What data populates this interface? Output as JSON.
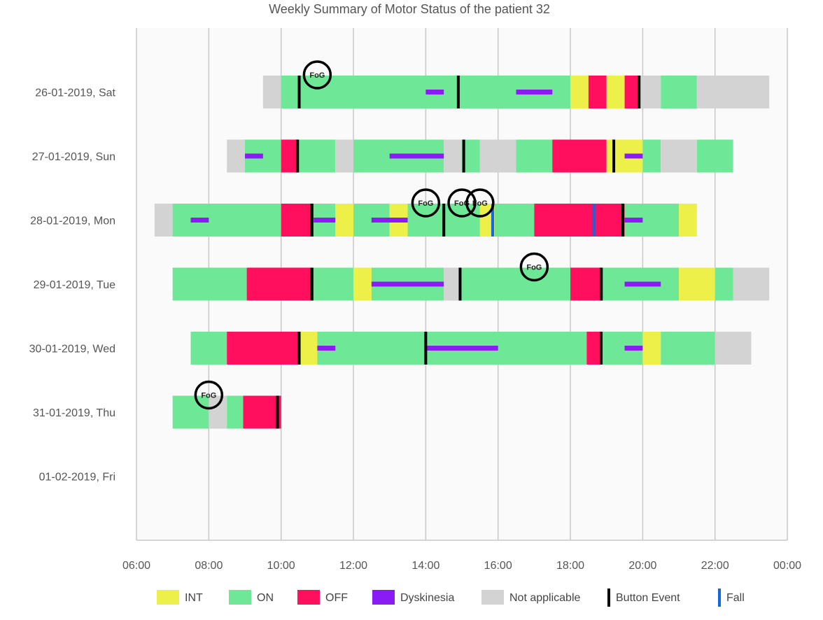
{
  "chart_data": {
    "type": "timeline",
    "title": "Weekly Summary of Motor Status of the patient 32",
    "x_axis": {
      "ticks": [
        "06:00",
        "08:00",
        "10:00",
        "12:00",
        "14:00",
        "16:00",
        "18:00",
        "20:00",
        "22:00",
        "00:00"
      ],
      "range_hours": [
        6,
        24
      ]
    },
    "legend": [
      {
        "key": "INT",
        "label": "INT",
        "color": "#eef04a"
      },
      {
        "key": "ON",
        "label": "ON",
        "color": "#6ee896"
      },
      {
        "key": "OFF",
        "label": "OFF",
        "color": "#ff0f5e"
      },
      {
        "key": "DYS",
        "label": "Dyskinesia",
        "color": "#8a1bf5"
      },
      {
        "key": "NA",
        "label": "Not applicable",
        "color": "#d3d3d3"
      },
      {
        "key": "BTN",
        "label": "Button Event",
        "color": "#000000"
      },
      {
        "key": "FALL",
        "label": "Fall",
        "color": "#1566e0"
      }
    ],
    "fog_label": "FoG",
    "days": [
      {
        "label": "26-01-2019, Sat",
        "segments": [
          [
            "NA",
            9.5,
            10.0
          ],
          [
            "ON",
            10.0,
            18.0
          ],
          [
            "INT",
            18.0,
            18.5
          ],
          [
            "OFF",
            18.5,
            19.0
          ],
          [
            "INT",
            19.0,
            19.5
          ],
          [
            "OFF",
            19.5,
            19.9
          ],
          [
            "NA",
            19.9,
            20.5
          ],
          [
            "ON",
            20.5,
            21.5
          ],
          [
            "NA",
            21.5,
            23.5
          ]
        ],
        "dyskinesia": [
          [
            14.0,
            14.5
          ],
          [
            16.5,
            17.5
          ]
        ],
        "buttons": [
          10.5,
          14.9,
          19.9
        ],
        "falls": [],
        "fog": [
          11.0
        ]
      },
      {
        "label": "27-01-2019, Sun",
        "segments": [
          [
            "NA",
            8.5,
            9.0
          ],
          [
            "ON",
            9.0,
            10.0
          ],
          [
            "OFF",
            10.0,
            10.5
          ],
          [
            "ON",
            10.5,
            11.5
          ],
          [
            "NA",
            11.5,
            12.0
          ],
          [
            "ON",
            12.0,
            14.5
          ],
          [
            "NA",
            14.5,
            15.0
          ],
          [
            "ON",
            15.0,
            15.5
          ],
          [
            "NA",
            15.5,
            16.5
          ],
          [
            "ON",
            16.5,
            17.5
          ],
          [
            "OFF",
            17.5,
            19.0
          ],
          [
            "INT",
            19.0,
            20.0
          ],
          [
            "ON",
            20.0,
            20.5
          ],
          [
            "NA",
            20.5,
            21.5
          ],
          [
            "ON",
            21.5,
            22.5
          ]
        ],
        "dyskinesia": [
          [
            9.0,
            9.5
          ],
          [
            13.0,
            14.5
          ],
          [
            19.5,
            20.0
          ]
        ],
        "buttons": [
          10.45,
          15.05,
          19.2
        ],
        "falls": [],
        "fog": []
      },
      {
        "label": "28-01-2019, Mon",
        "segments": [
          [
            "NA",
            6.5,
            7.0
          ],
          [
            "ON",
            7.0,
            10.0
          ],
          [
            "OFF",
            10.0,
            10.9
          ],
          [
            "ON",
            10.9,
            11.5
          ],
          [
            "INT",
            11.5,
            12.0
          ],
          [
            "ON",
            12.0,
            13.0
          ],
          [
            "INT",
            13.0,
            13.5
          ],
          [
            "ON",
            13.5,
            15.5
          ],
          [
            "INT",
            15.5,
            15.9
          ],
          [
            "ON",
            15.9,
            17.0
          ],
          [
            "OFF",
            17.0,
            19.5
          ],
          [
            "ON",
            19.5,
            21.0
          ],
          [
            "INT",
            21.0,
            21.5
          ]
        ],
        "dyskinesia": [
          [
            7.5,
            8.0
          ],
          [
            10.9,
            11.5
          ],
          [
            12.5,
            13.5
          ],
          [
            19.5,
            20.0
          ]
        ],
        "buttons": [
          10.85,
          14.5,
          19.45
        ],
        "falls": [
          15.85,
          18.65
        ],
        "fog": [
          14.0,
          15.0,
          15.5
        ]
      },
      {
        "label": "29-01-2019, Tue",
        "segments": [
          [
            "ON",
            7.0,
            9.05
          ],
          [
            "OFF",
            9.05,
            10.9
          ],
          [
            "ON",
            10.9,
            12.0
          ],
          [
            "INT",
            12.0,
            12.5
          ],
          [
            "ON",
            12.5,
            14.5
          ],
          [
            "NA",
            14.5,
            14.95
          ],
          [
            "ON",
            14.95,
            18.0
          ],
          [
            "OFF",
            18.0,
            18.9
          ],
          [
            "ON",
            18.9,
            21.0
          ],
          [
            "INT",
            21.0,
            22.0
          ],
          [
            "ON",
            22.0,
            22.5
          ],
          [
            "NA",
            22.5,
            23.5
          ]
        ],
        "dyskinesia": [
          [
            12.5,
            14.5
          ],
          [
            19.5,
            20.5
          ]
        ],
        "buttons": [
          10.85,
          14.95,
          18.85
        ],
        "falls": [],
        "fog": [
          17.0
        ]
      },
      {
        "label": "30-01-2019, Wed",
        "segments": [
          [
            "ON",
            7.5,
            8.5
          ],
          [
            "OFF",
            8.5,
            10.5
          ],
          [
            "INT",
            10.5,
            11.0
          ],
          [
            "ON",
            11.0,
            18.45
          ],
          [
            "OFF",
            18.45,
            18.85
          ],
          [
            "ON",
            18.85,
            20.0
          ],
          [
            "INT",
            20.0,
            20.5
          ],
          [
            "ON",
            20.5,
            22.0
          ],
          [
            "NA",
            22.0,
            23.0
          ]
        ],
        "dyskinesia": [
          [
            11.0,
            11.5
          ],
          [
            14.0,
            16.0
          ],
          [
            19.5,
            20.0
          ]
        ],
        "buttons": [
          10.5,
          14.0,
          18.85
        ],
        "falls": [],
        "fog": []
      },
      {
        "label": "31-01-2019, Thu",
        "segments": [
          [
            "ON",
            7.0,
            8.0
          ],
          [
            "NA",
            8.0,
            8.5
          ],
          [
            "ON",
            8.5,
            8.95
          ],
          [
            "OFF",
            8.95,
            10.0
          ]
        ],
        "dyskinesia": [],
        "buttons": [
          9.9
        ],
        "falls": [],
        "fog": [
          8.0
        ]
      },
      {
        "label": "01-02-2019, Fri",
        "segments": [],
        "dyskinesia": [],
        "buttons": [],
        "falls": [],
        "fog": []
      }
    ]
  }
}
